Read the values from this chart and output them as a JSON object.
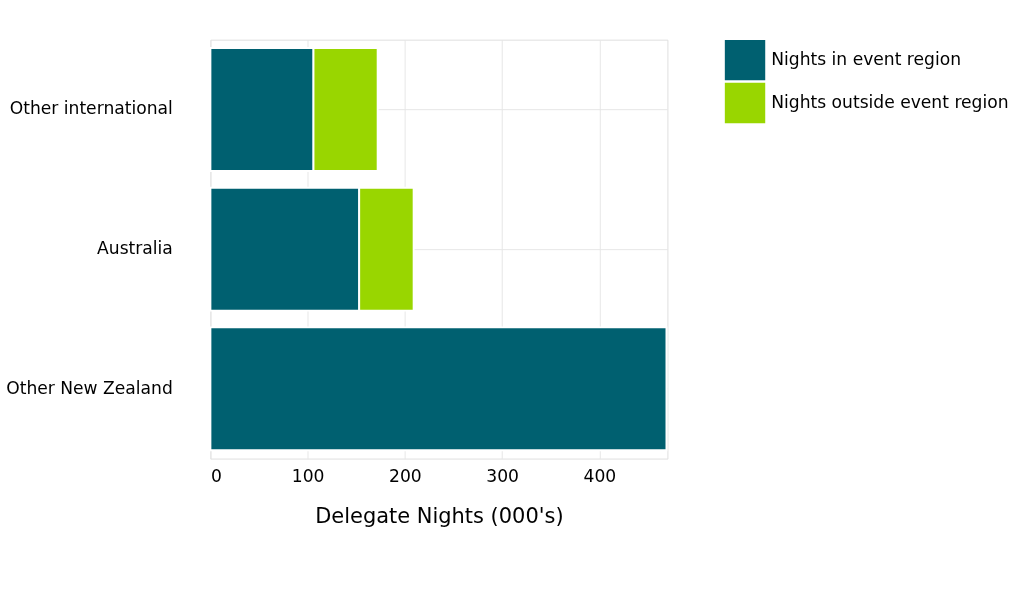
{
  "chart_data": {
    "type": "bar",
    "orientation": "horizontal",
    "stacked": true,
    "categories": [
      "Other international",
      "Australia",
      "Other New Zealand"
    ],
    "series": [
      {
        "name": "Nights in event region",
        "color": "#006070",
        "values": [
          106,
          153,
          469
        ]
      },
      {
        "name": "Nights outside event region",
        "color": "#99d600",
        "values": [
          66,
          56,
          null
        ]
      }
    ],
    "xlabel": "Delegate Nights (000's)",
    "xlim": [
      0,
      470
    ],
    "xticks": [
      0,
      100,
      200,
      300,
      400
    ],
    "grid": true,
    "legend": "right"
  }
}
